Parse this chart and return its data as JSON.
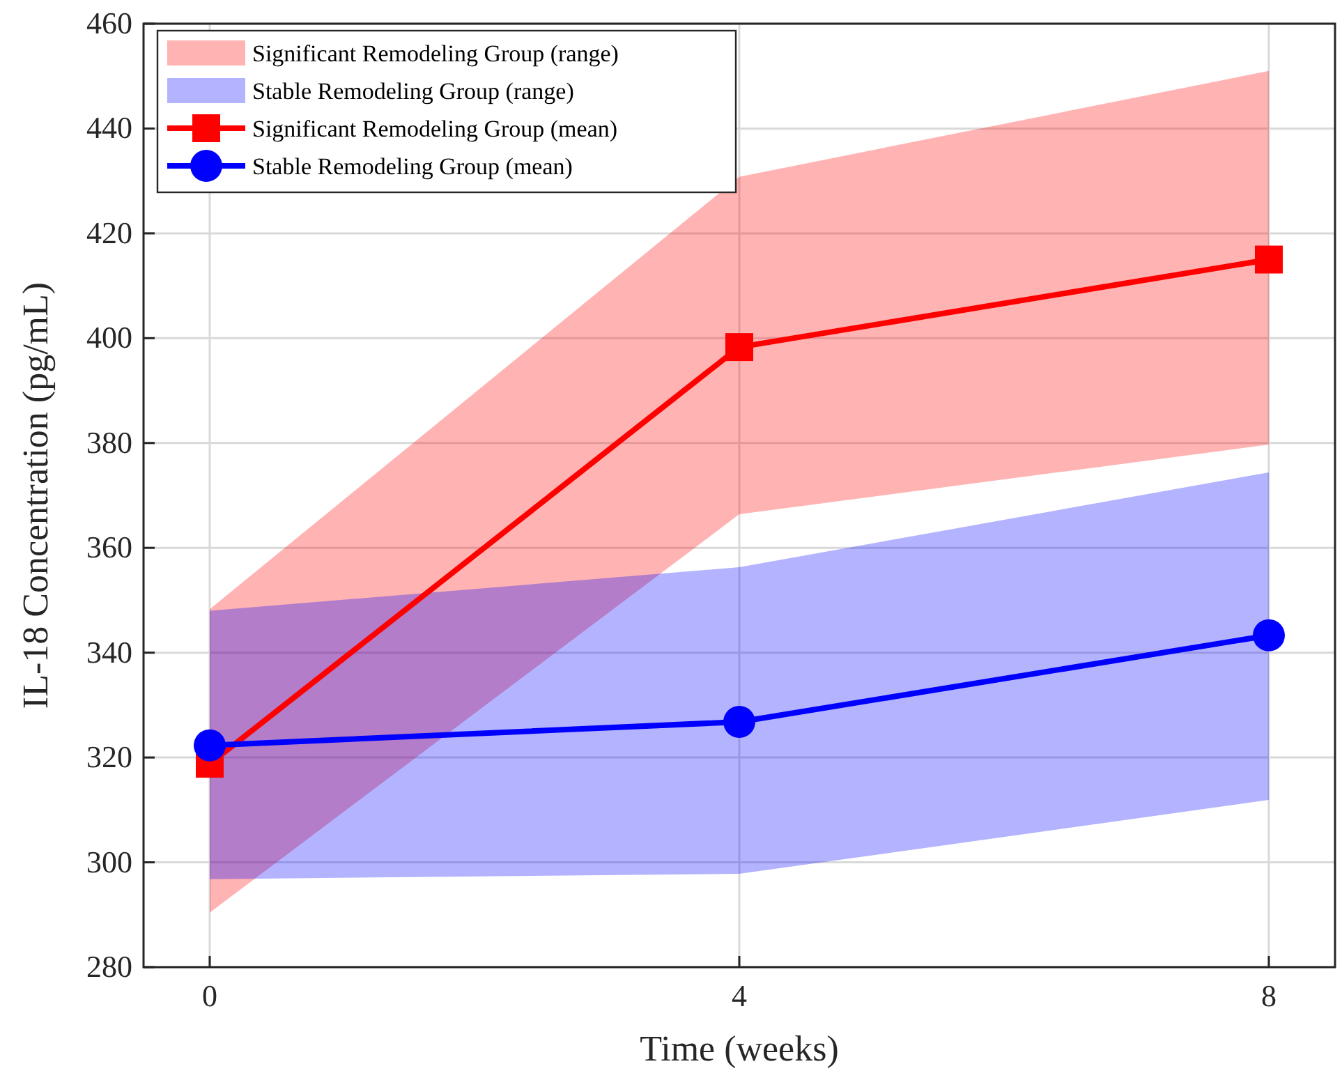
{
  "chart_data": {
    "type": "line",
    "xlabel": "Time (weeks)",
    "ylabel": "IL-18 Concentration (pg/mL)",
    "x": [
      0,
      4,
      8
    ],
    "xlim": [
      -0.5,
      8.5
    ],
    "xticks": [
      0,
      4,
      8
    ],
    "ylim": [
      280,
      460
    ],
    "yticks": [
      280,
      300,
      320,
      340,
      360,
      380,
      400,
      420,
      440,
      460
    ],
    "grid": true,
    "legend": "top left",
    "line_style": "solid",
    "series": [
      {
        "type": "area",
        "name": "Significant Remodeling Group (range)",
        "color": "#ffb3b3",
        "values": [
          null,
          null,
          null
        ],
        "lower": [
          290.4,
          366.4,
          379.7
        ],
        "upper": [
          348.3,
          430.8,
          451
        ]
      },
      {
        "type": "area",
        "name": "Stable Remodeling Group (range)",
        "color": "#b3b3ff",
        "values": [
          null,
          null,
          null
        ],
        "lower": [
          296.8,
          297.8,
          311.9
        ],
        "upper": [
          348,
          356.3,
          374.4
        ]
      },
      {
        "type": "line",
        "name": "Significant Remodeling Group (mean)",
        "color": "#ff0000",
        "marker": "square",
        "values": [
          318.8,
          398.3,
          415
        ]
      },
      {
        "type": "line",
        "name": "Stable Remodeling Group (mean)",
        "color": "#0000ff",
        "marker": "circle",
        "values": [
          322.3,
          326.8,
          343.3
        ]
      }
    ]
  }
}
